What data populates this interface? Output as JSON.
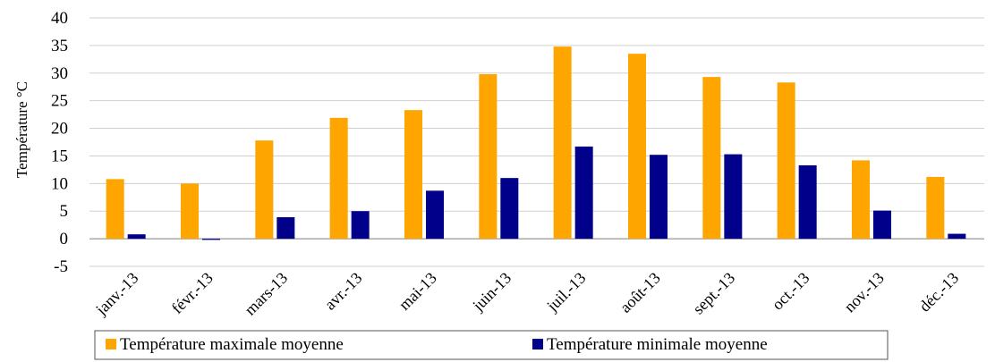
{
  "chart_data": {
    "type": "bar",
    "ylabel": "Température °C",
    "ylim": [
      -5,
      40
    ],
    "yticks": [
      -5,
      0,
      5,
      10,
      15,
      20,
      25,
      30,
      35,
      40
    ],
    "grid": true,
    "legend_position": "bottom",
    "categories": [
      "janv.-13",
      "févr.-13",
      "mars-13",
      "avr.-13",
      "mai-13",
      "juin-13",
      "juil.-13",
      "août-13",
      "sept.-13",
      "oct.-13",
      "nov.-13",
      "déc.-13"
    ],
    "series": [
      {
        "name": "Température maximale moyenne",
        "color": "#FFA500",
        "values": [
          10.8,
          10.0,
          17.8,
          21.9,
          23.3,
          29.8,
          34.8,
          33.5,
          29.3,
          28.3,
          14.2,
          11.2
        ]
      },
      {
        "name": "Température minimale moyenne",
        "color": "#00008B",
        "values": [
          0.8,
          -0.2,
          3.9,
          5.0,
          8.7,
          11.0,
          16.7,
          15.2,
          15.3,
          13.3,
          5.1,
          0.9
        ]
      }
    ]
  }
}
